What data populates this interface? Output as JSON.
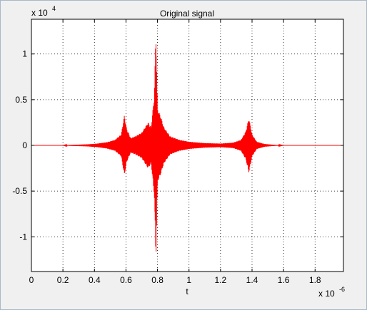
{
  "chart_data": {
    "type": "line",
    "title": "Original signal",
    "xlabel": "t",
    "ylabel": "",
    "x_multiplier": "x 10",
    "x_exponent": "-6",
    "y_multiplier": "x 10",
    "y_exponent": "4",
    "xlim": [
      0,
      1.98
    ],
    "ylim": [
      -1.38,
      1.38
    ],
    "grid": true,
    "series_color": "#ff0000",
    "x_ticks": [
      0,
      0.2,
      0.4,
      0.6,
      0.8,
      1,
      1.2,
      1.4,
      1.6,
      1.8
    ],
    "x_tick_labels": [
      "0",
      "0.2",
      "0.4",
      "0.6",
      "0.8",
      "1",
      "1.2",
      "1.4",
      "1.6",
      "1.8"
    ],
    "y_ticks": [
      1,
      0.5,
      0,
      -0.5,
      -1
    ],
    "y_tick_labels": [
      "1",
      "0.5",
      "0",
      "-0.5",
      "-1"
    ],
    "envelope": [
      {
        "x": 0.0,
        "y": 0.0
      },
      {
        "x": 0.2,
        "y": 0.0
      },
      {
        "x": 0.24,
        "y": 0.005
      },
      {
        "x": 0.3,
        "y": 0.008
      },
      {
        "x": 0.36,
        "y": 0.012
      },
      {
        "x": 0.42,
        "y": 0.02
      },
      {
        "x": 0.48,
        "y": 0.035
      },
      {
        "x": 0.53,
        "y": 0.06
      },
      {
        "x": 0.57,
        "y": 0.12
      },
      {
        "x": 0.59,
        "y": 0.33
      },
      {
        "x": 0.605,
        "y": 0.18
      },
      {
        "x": 0.63,
        "y": 0.08
      },
      {
        "x": 0.66,
        "y": 0.1
      },
      {
        "x": 0.7,
        "y": 0.14
      },
      {
        "x": 0.74,
        "y": 0.25
      },
      {
        "x": 0.76,
        "y": 0.2
      },
      {
        "x": 0.78,
        "y": 0.55
      },
      {
        "x": 0.79,
        "y": 1.27
      },
      {
        "x": 0.8,
        "y": 0.4
      },
      {
        "x": 0.82,
        "y": 0.32
      },
      {
        "x": 0.84,
        "y": 0.2
      },
      {
        "x": 0.88,
        "y": 0.1
      },
      {
        "x": 0.94,
        "y": 0.06
      },
      {
        "x": 1.0,
        "y": 0.04
      },
      {
        "x": 1.1,
        "y": 0.025
      },
      {
        "x": 1.2,
        "y": 0.02
      },
      {
        "x": 1.28,
        "y": 0.03
      },
      {
        "x": 1.33,
        "y": 0.06
      },
      {
        "x": 1.36,
        "y": 0.15
      },
      {
        "x": 1.38,
        "y": 0.3
      },
      {
        "x": 1.4,
        "y": 0.12
      },
      {
        "x": 1.43,
        "y": 0.04
      },
      {
        "x": 1.48,
        "y": 0.015
      },
      {
        "x": 1.55,
        "y": 0.005
      },
      {
        "x": 1.6,
        "y": 0.0
      },
      {
        "x": 1.98,
        "y": 0.0
      }
    ]
  }
}
